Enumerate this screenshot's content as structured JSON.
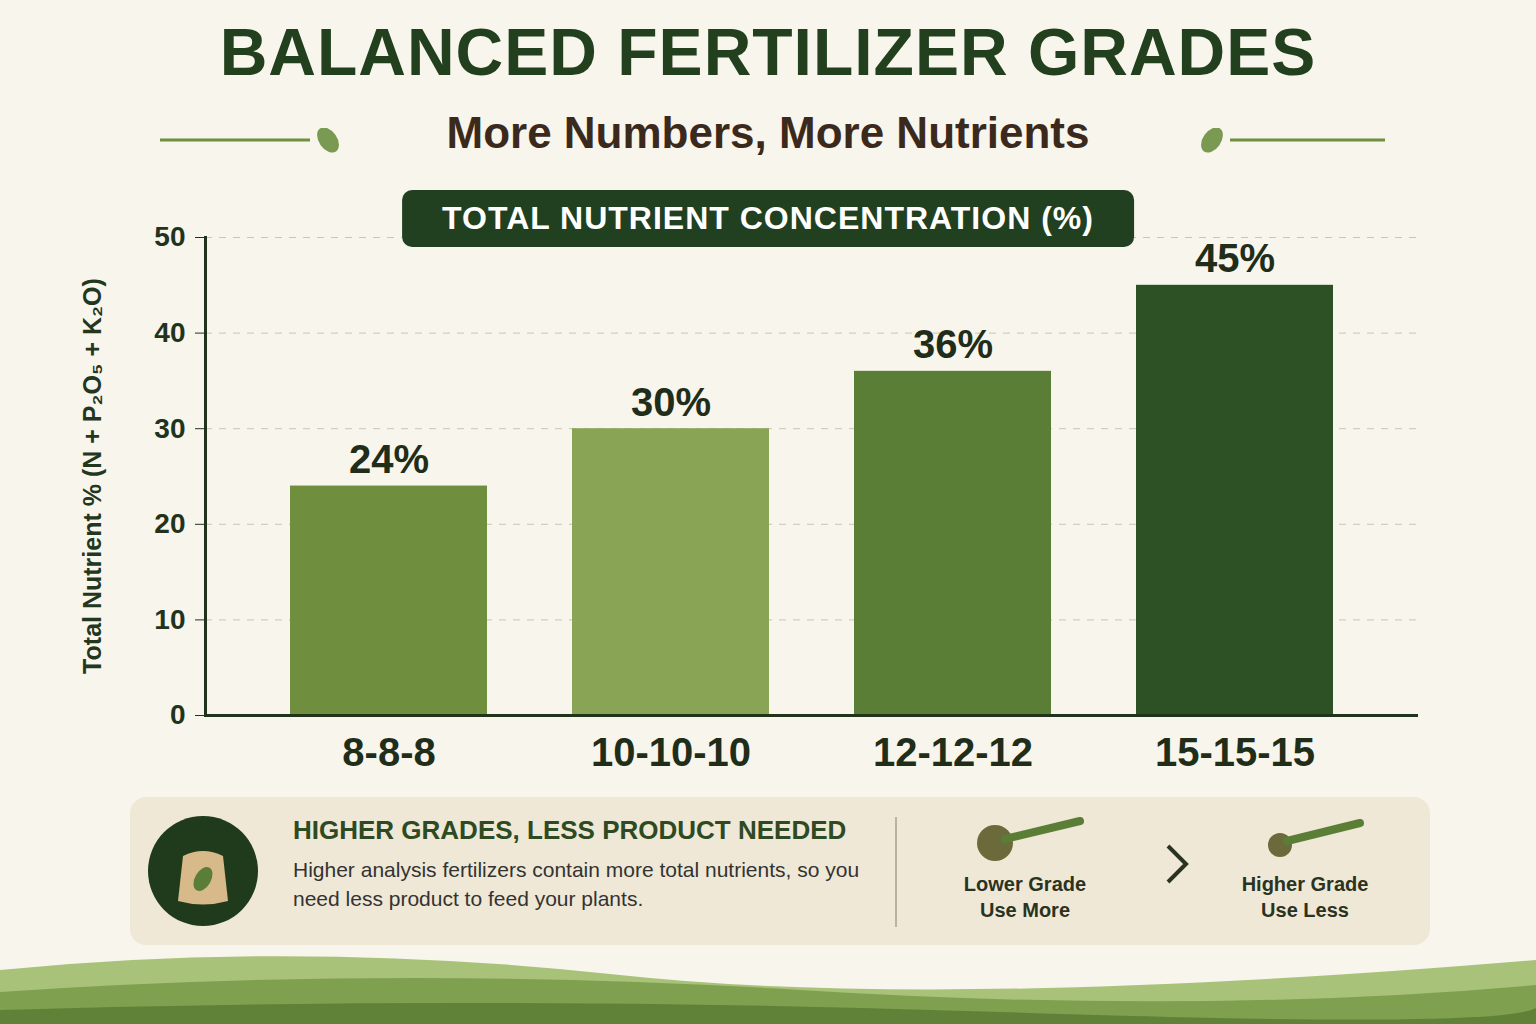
{
  "chart_data": {
    "type": "bar",
    "title": "BALANCED FERTILIZER GRADES",
    "subtitle": "More Numbers, More Nutrients",
    "annotations": [
      "TOTAL NUTRIENT CONCENTRATION (%)"
    ],
    "y_label": "Total Nutrient % (N + P₂O₅ + K₂O)",
    "categories": [
      "8-8-8",
      "10-10-10",
      "12-12-12",
      "15-15-15"
    ],
    "values": [
      24,
      30,
      36,
      45
    ],
    "value_labels": [
      "24%",
      "30%",
      "36%",
      "45%"
    ],
    "colors": [
      "#6f8f3f",
      "#8aa456",
      "#5b7e36",
      "#2d5024"
    ],
    "ylim": [
      0,
      50
    ],
    "yticks": [
      0,
      10,
      20,
      30,
      40,
      50
    ],
    "grid": true,
    "data_labels": true
  },
  "callout": {
    "heading": "HIGHER GRADES, LESS PRODUCT NEEDED",
    "text": "Higher analysis fertilizers contain more total nutrients, so you need less product to feed your plants.",
    "comparison": [
      {
        "label": "Lower Grade",
        "note": "Use More"
      },
      {
        "label": "Higher Grade",
        "note": "Use Less"
      }
    ]
  }
}
